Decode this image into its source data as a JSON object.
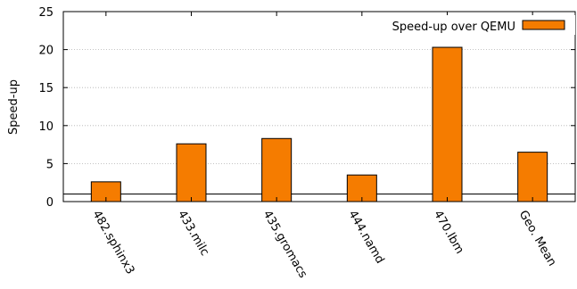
{
  "chart_data": {
    "type": "bar",
    "categories": [
      "482.sphinx3",
      "433.milc",
      "435.gromacs",
      "444.namd",
      "470.lbm",
      "Geo. Mean"
    ],
    "series": [
      {
        "name": "Speed-up over QEMU",
        "values": [
          2.6,
          7.6,
          8.3,
          3.5,
          20.3,
          6.5
        ],
        "color": "#f57c00"
      }
    ],
    "xlabel": "",
    "ylabel": "Speed-up",
    "ylim": [
      0,
      25
    ],
    "yticks": [
      0,
      5,
      10,
      15,
      20,
      25
    ],
    "reference_line": 1,
    "grid": "horizontal-dotted",
    "legend_position": "top-right",
    "x_tick_rotation": "rotated"
  }
}
